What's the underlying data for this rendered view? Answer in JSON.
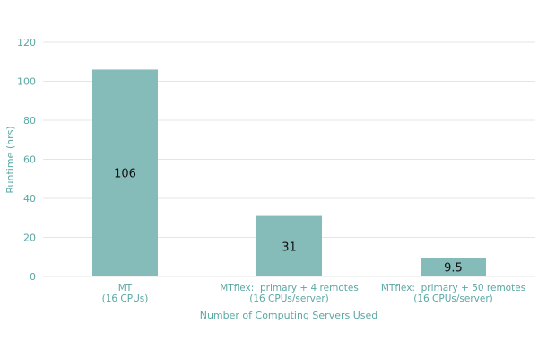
{
  "chart_data": {
    "type": "bar",
    "categories": [
      [
        "MT",
        "(16 CPUs)"
      ],
      [
        "MTflex:  primary + 4 remotes",
        "(16 CPUs/server)"
      ],
      [
        "MTflex:  primary + 50 remotes",
        "(16 CPUs/server)"
      ]
    ],
    "values": [
      106,
      31,
      9.5
    ],
    "data_labels": [
      "106",
      "31",
      "9.5"
    ],
    "xlabel": "Number of Computing Servers Used",
    "ylabel": "Runtime (hrs)",
    "ylim": [
      0,
      120
    ],
    "yticks": [
      0,
      20,
      40,
      60,
      80,
      100,
      120
    ],
    "grid": true,
    "bar_color": "#85bcb9",
    "text_color": "#5aa7a3"
  }
}
